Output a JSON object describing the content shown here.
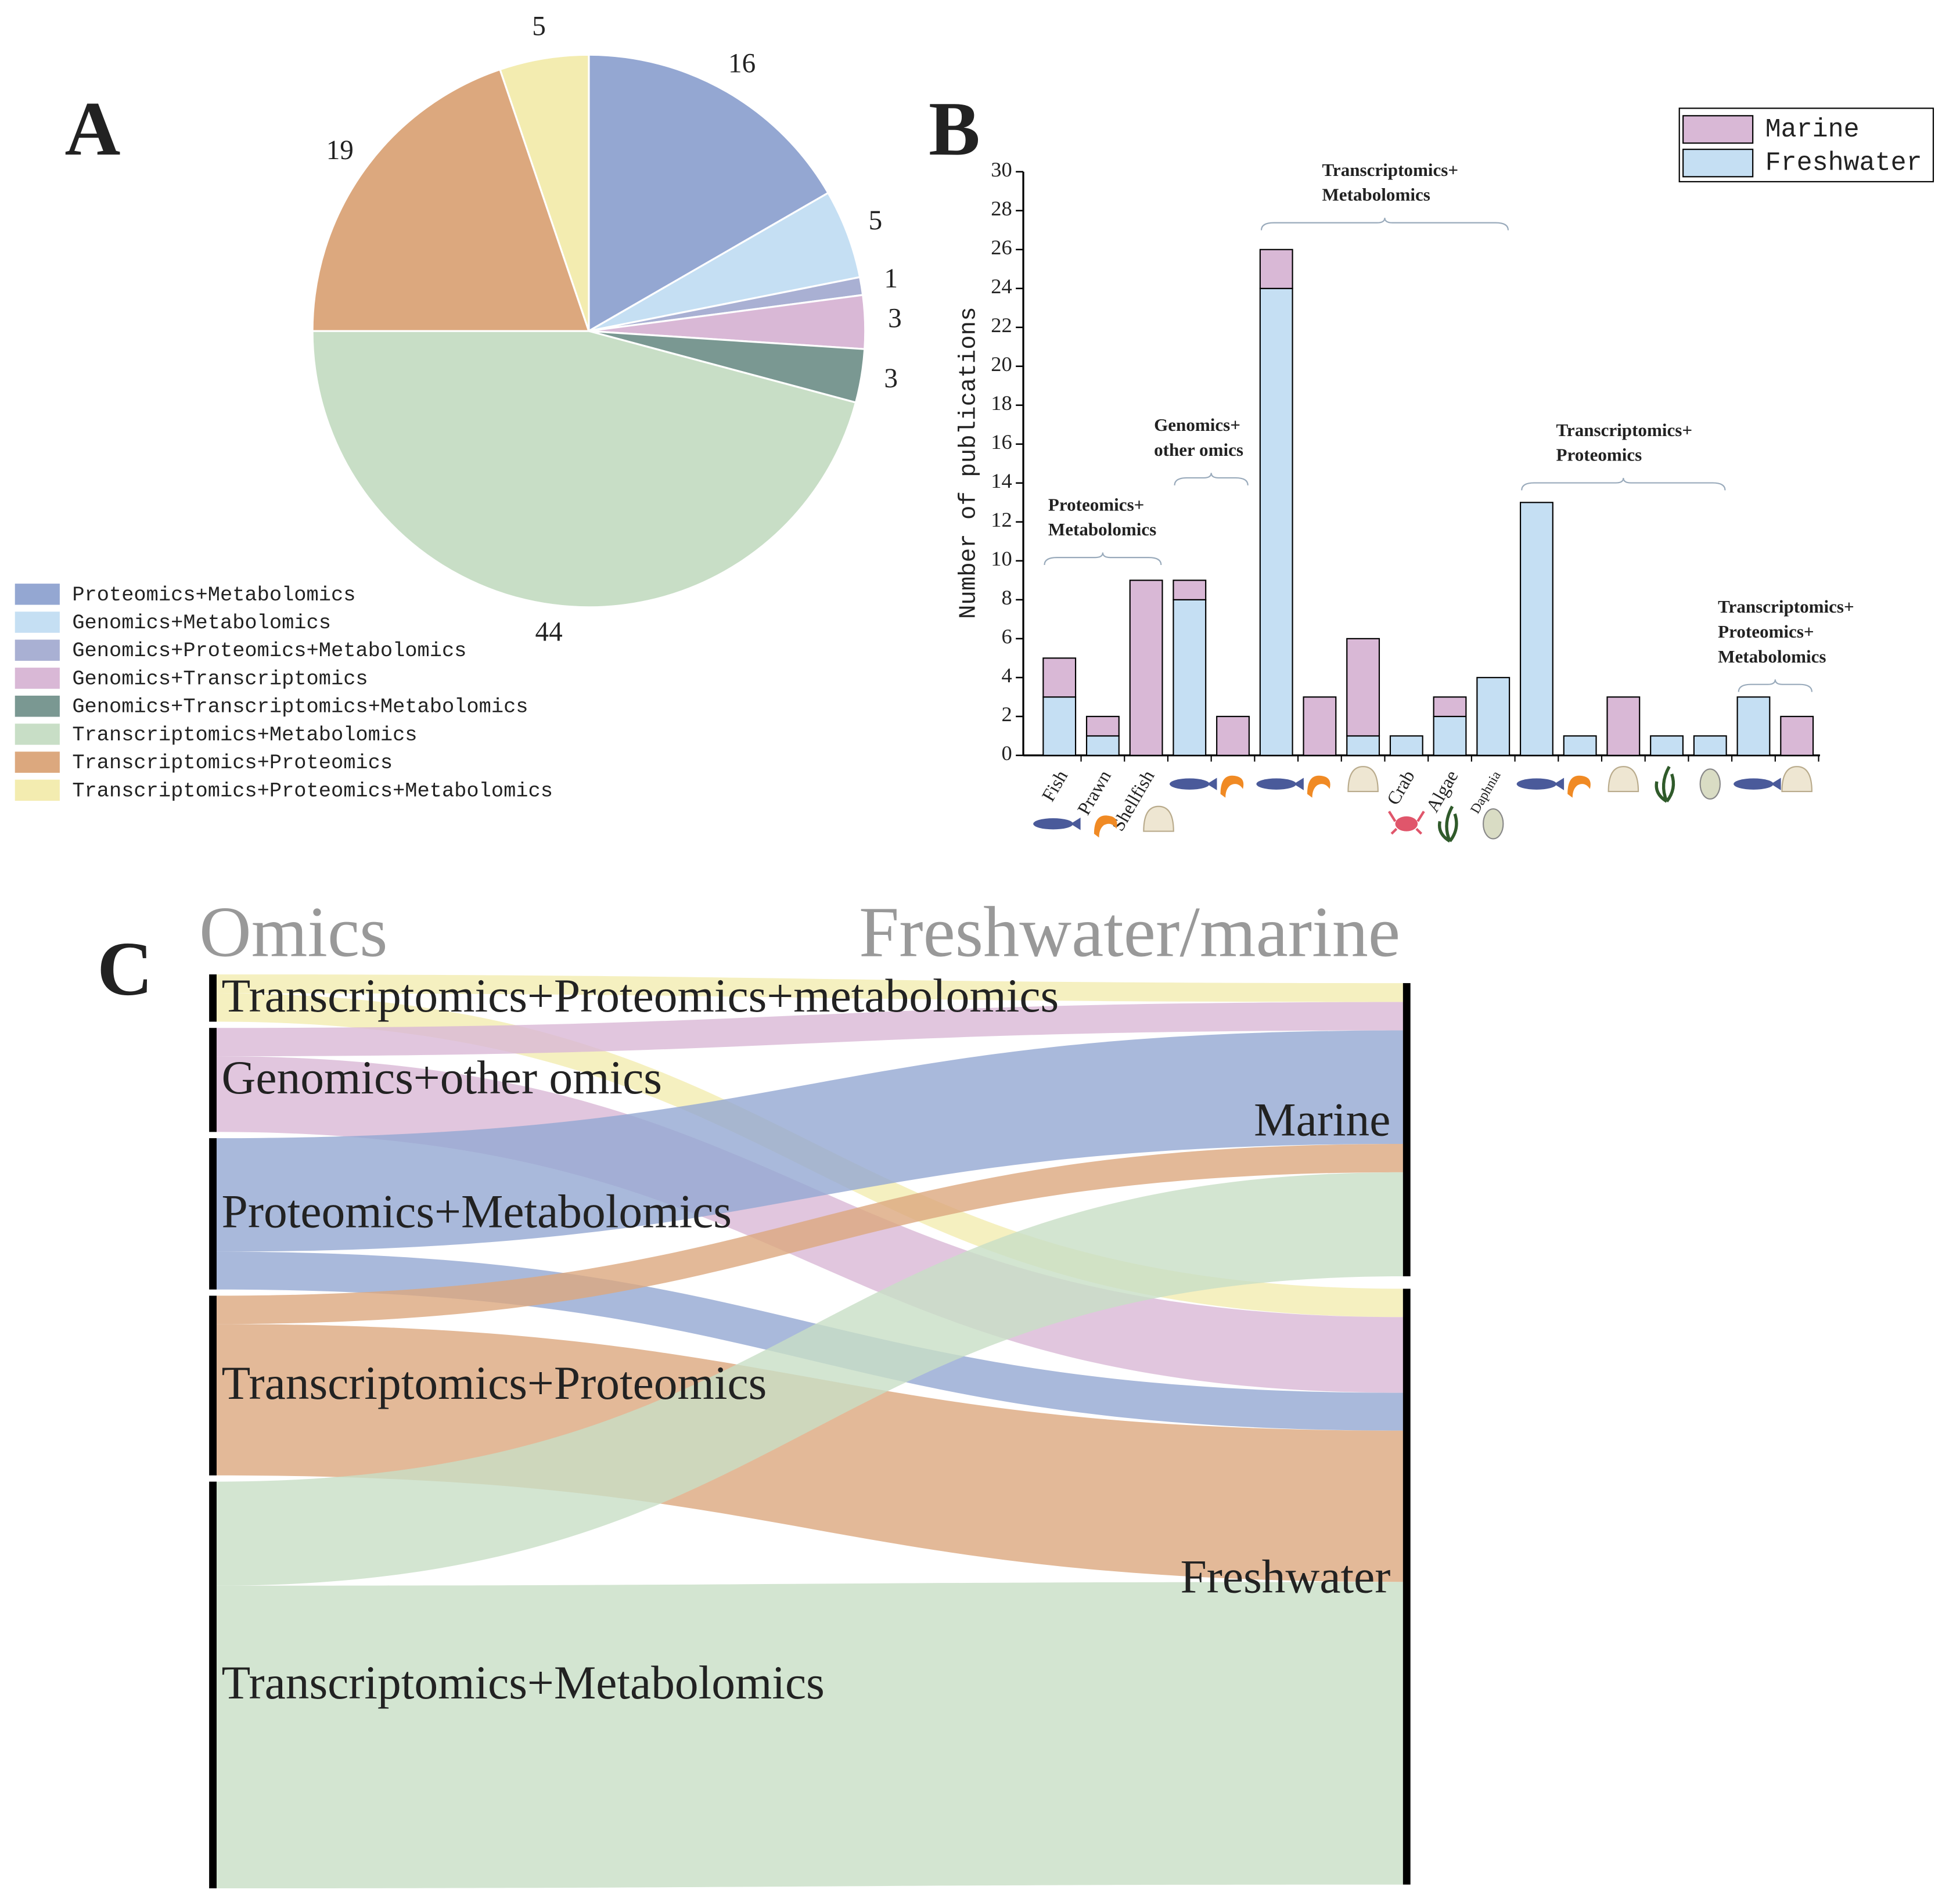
{
  "chart_data": [
    {
      "type": "pie",
      "panel": "A",
      "categories": [
        "Proteomics+Metabolomics",
        "Genomics+Metabolomics",
        "Genomics+Proteomics+Metabolomics",
        "Genomics+Transcriptomics",
        "Genomics+Transcriptomics+Metabolomics",
        "Transcriptomics+Metabolomics",
        "Transcriptomics+Proteomics",
        "Transcriptomics+Proteomics+Metabolomics"
      ],
      "values": [
        16,
        5,
        1,
        3,
        3,
        44,
        19,
        5
      ],
      "colors": [
        "#94a7d2",
        "#c5dff3",
        "#a9b0d3",
        "#d9b8d6",
        "#7a9892",
        "#c8dec6",
        "#dca87e",
        "#f3ecb0"
      ],
      "legend": "lower-left"
    },
    {
      "type": "bar",
      "panel": "B",
      "stacked": true,
      "ylabel": "Number of publications",
      "categories": [
        "Fish",
        "Prawn",
        "Shellfish",
        null,
        null,
        null,
        null,
        null,
        "Crab",
        "Algae",
        "Daphnia",
        null,
        null,
        null,
        null,
        null,
        null,
        null
      ],
      "series": [
        {
          "name": "Freshwater",
          "color": "#c5dff3",
          "values": [
            3,
            1,
            0,
            8,
            0,
            24,
            0,
            1,
            1,
            2,
            4,
            13,
            1,
            0,
            1,
            1,
            3,
            0
          ]
        },
        {
          "name": "Marine",
          "color": "#d9b8d6",
          "values": [
            2,
            1,
            9,
            1,
            2,
            2,
            3,
            5,
            0,
            1,
            0,
            0,
            0,
            3,
            0,
            0,
            0,
            2
          ]
        }
      ],
      "groups": [
        [
          "Proteomics+",
          "Metabolomics"
        ],
        [
          "Genomics+",
          "other omics"
        ],
        [
          "Transcriptomics+",
          "Metabolomics"
        ],
        [
          "Transcriptomics+",
          "Proteomics"
        ],
        [
          "Transcriptomics+",
          "Proteomics+",
          "Metabolomics"
        ]
      ],
      "ylim": [
        0,
        30
      ],
      "yticks": [
        0,
        2,
        4,
        6,
        8,
        10,
        12,
        14,
        16,
        18,
        20,
        22,
        24,
        26,
        28,
        30
      ],
      "legend": "upper-right"
    },
    {
      "type": "sankey",
      "panel": "C",
      "headers": [
        "Omics",
        "Freshwater/marine"
      ],
      "sources": [
        {
          "name": "Transcriptomics+Proteomics+metabolomics",
          "color": "#f3ecb0"
        },
        {
          "name": "Genomics+other omics",
          "color": "#d9b8d6"
        },
        {
          "name": "Proteomics+Metabolomics",
          "color": "#94a7d2"
        },
        {
          "name": "Transcriptomics+Proteomics",
          "color": "#dca87e"
        },
        {
          "name": "Transcriptomics+Metabolomics",
          "color": "#c8dec6"
        }
      ],
      "targets": [
        "Marine",
        "Freshwater"
      ],
      "links": [
        {
          "source": 0,
          "target": 0,
          "value": 2
        },
        {
          "source": 0,
          "target": 1,
          "value": 3
        },
        {
          "source": 1,
          "target": 0,
          "value": 3
        },
        {
          "source": 1,
          "target": 1,
          "value": 8
        },
        {
          "source": 2,
          "target": 0,
          "value": 12
        },
        {
          "source": 2,
          "target": 1,
          "value": 4
        },
        {
          "source": 3,
          "target": 0,
          "value": 3
        },
        {
          "source": 3,
          "target": 1,
          "value": 16
        },
        {
          "source": 4,
          "target": 0,
          "value": 11
        },
        {
          "source": 4,
          "target": 1,
          "value": 32
        }
      ]
    }
  ]
}
